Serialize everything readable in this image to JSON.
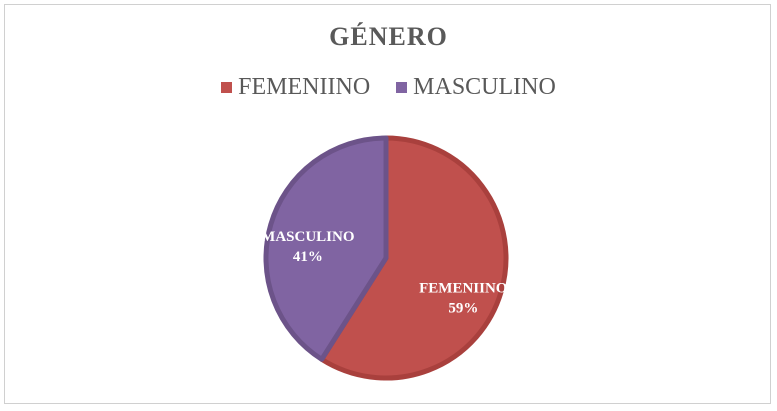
{
  "chart_data": {
    "type": "pie",
    "title": "GÉNERO",
    "legend_position": "top",
    "slices": [
      {
        "name": "FEMENIINO",
        "value": 59,
        "value_label": "59%",
        "color": "#c0504d",
        "edge_color": "#a9403d"
      },
      {
        "name": "MASCULINO",
        "value": 41,
        "value_label": "41%",
        "color": "#8064a2",
        "edge_color": "#6c5389"
      }
    ]
  }
}
